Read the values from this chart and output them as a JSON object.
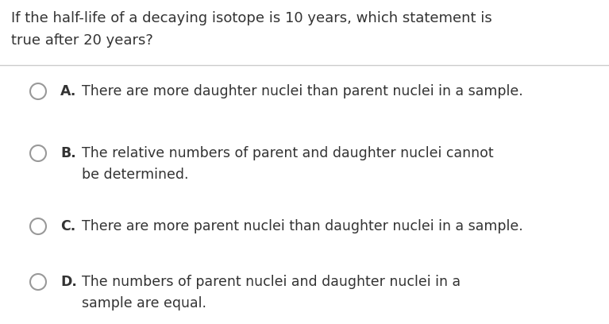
{
  "background_color": "#ffffff",
  "question_text_line1": "If the half-life of a decaying isotope is 10 years, which statement is",
  "question_text_line2": "true after 20 years?",
  "question_fontsize": 13.0,
  "question_color": "#333333",
  "divider_color": "#cccccc",
  "options": [
    {
      "letter": "A.",
      "text": "There are more daughter nuclei than parent nuclei in a sample.",
      "text_line2": null
    },
    {
      "letter": "B.",
      "text": "The relative numbers of parent and daughter nuclei cannot",
      "text_line2": "be determined."
    },
    {
      "letter": "C.",
      "text": "There are more parent nuclei than daughter nuclei in a sample.",
      "text_line2": null
    },
    {
      "letter": "D.",
      "text": "The numbers of parent nuclei and daughter nuclei in a",
      "text_line2": "sample are equal."
    }
  ],
  "option_fontsize": 12.5,
  "letter_fontsize": 12.5,
  "option_color": "#333333",
  "circle_edge_color": "#999999",
  "circle_face_color": "#ffffff",
  "circle_linewidth": 1.5,
  "circle_size_pt": 11
}
